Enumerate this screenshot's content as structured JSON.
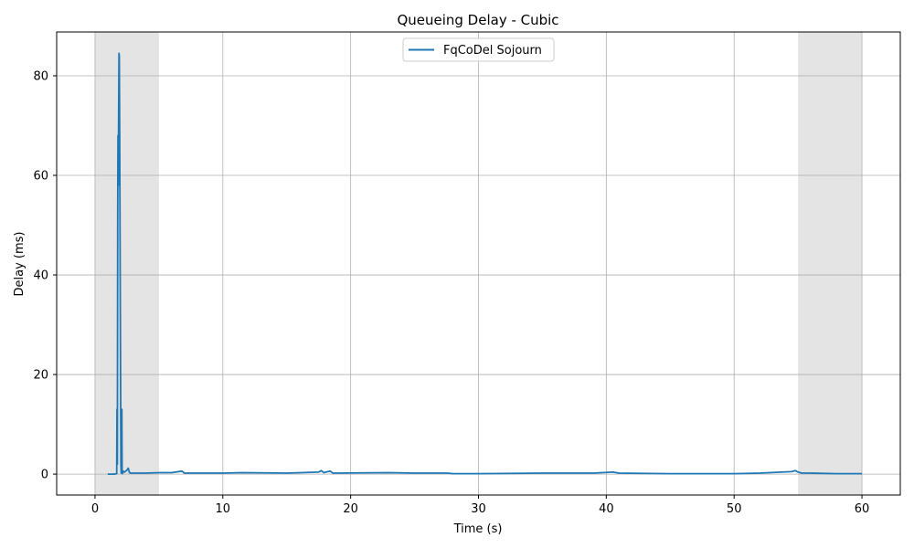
{
  "chart_data": {
    "type": "line",
    "title": "Queueing Delay - Cubic",
    "xlabel": "Time (s)",
    "ylabel": "Delay (ms)",
    "xlim": [
      -3,
      63
    ],
    "ylim": [
      -4.2,
      88.8
    ],
    "xticks": [
      0,
      10,
      20,
      30,
      40,
      50,
      60
    ],
    "yticks": [
      0,
      20,
      40,
      60,
      80
    ],
    "grid": true,
    "legend_position": "top-center",
    "shaded_regions": [
      {
        "x_start": 0,
        "x_end": 5,
        "color": "#e4e4e4"
      },
      {
        "x_start": 55,
        "x_end": 60,
        "color": "#e4e4e4"
      }
    ],
    "series": [
      {
        "name": "FqCoDel Sojourn",
        "color": "#1f77b4",
        "x": [
          1.0,
          1.5,
          1.7,
          1.72,
          1.75,
          1.78,
          1.8,
          1.82,
          1.85,
          1.88,
          1.9,
          1.93,
          1.96,
          2.0,
          2.03,
          2.05,
          2.1,
          2.12,
          2.15,
          2.2,
          2.3,
          2.5,
          2.6,
          2.7,
          2.8,
          3.0,
          4.0,
          5.0,
          6.0,
          6.8,
          7.0,
          10.0,
          11.5,
          15.0,
          17.5,
          17.7,
          17.9,
          18.4,
          18.6,
          19.0,
          23.0,
          25.0,
          27.6,
          28.0,
          30.0,
          35.0,
          39.0,
          40.5,
          41.0,
          45.0,
          50.0,
          52.0,
          54.5,
          54.8,
          55.0,
          55.3,
          56.0,
          58.0,
          60.0
        ],
        "y": [
          0.0,
          0.0,
          0.1,
          13.0,
          2.0,
          53.0,
          68.0,
          58.0,
          72.0,
          84.5,
          84.0,
          70.0,
          45.0,
          20.0,
          2.0,
          0.2,
          13.0,
          0.3,
          0.1,
          0.6,
          0.4,
          0.8,
          1.2,
          0.3,
          0.2,
          0.2,
          0.2,
          0.3,
          0.3,
          0.6,
          0.2,
          0.2,
          0.3,
          0.2,
          0.4,
          0.7,
          0.3,
          0.6,
          0.2,
          0.2,
          0.3,
          0.2,
          0.2,
          0.1,
          0.1,
          0.2,
          0.2,
          0.4,
          0.2,
          0.1,
          0.1,
          0.2,
          0.5,
          0.7,
          0.4,
          0.2,
          0.2,
          0.1,
          0.1
        ]
      }
    ]
  }
}
